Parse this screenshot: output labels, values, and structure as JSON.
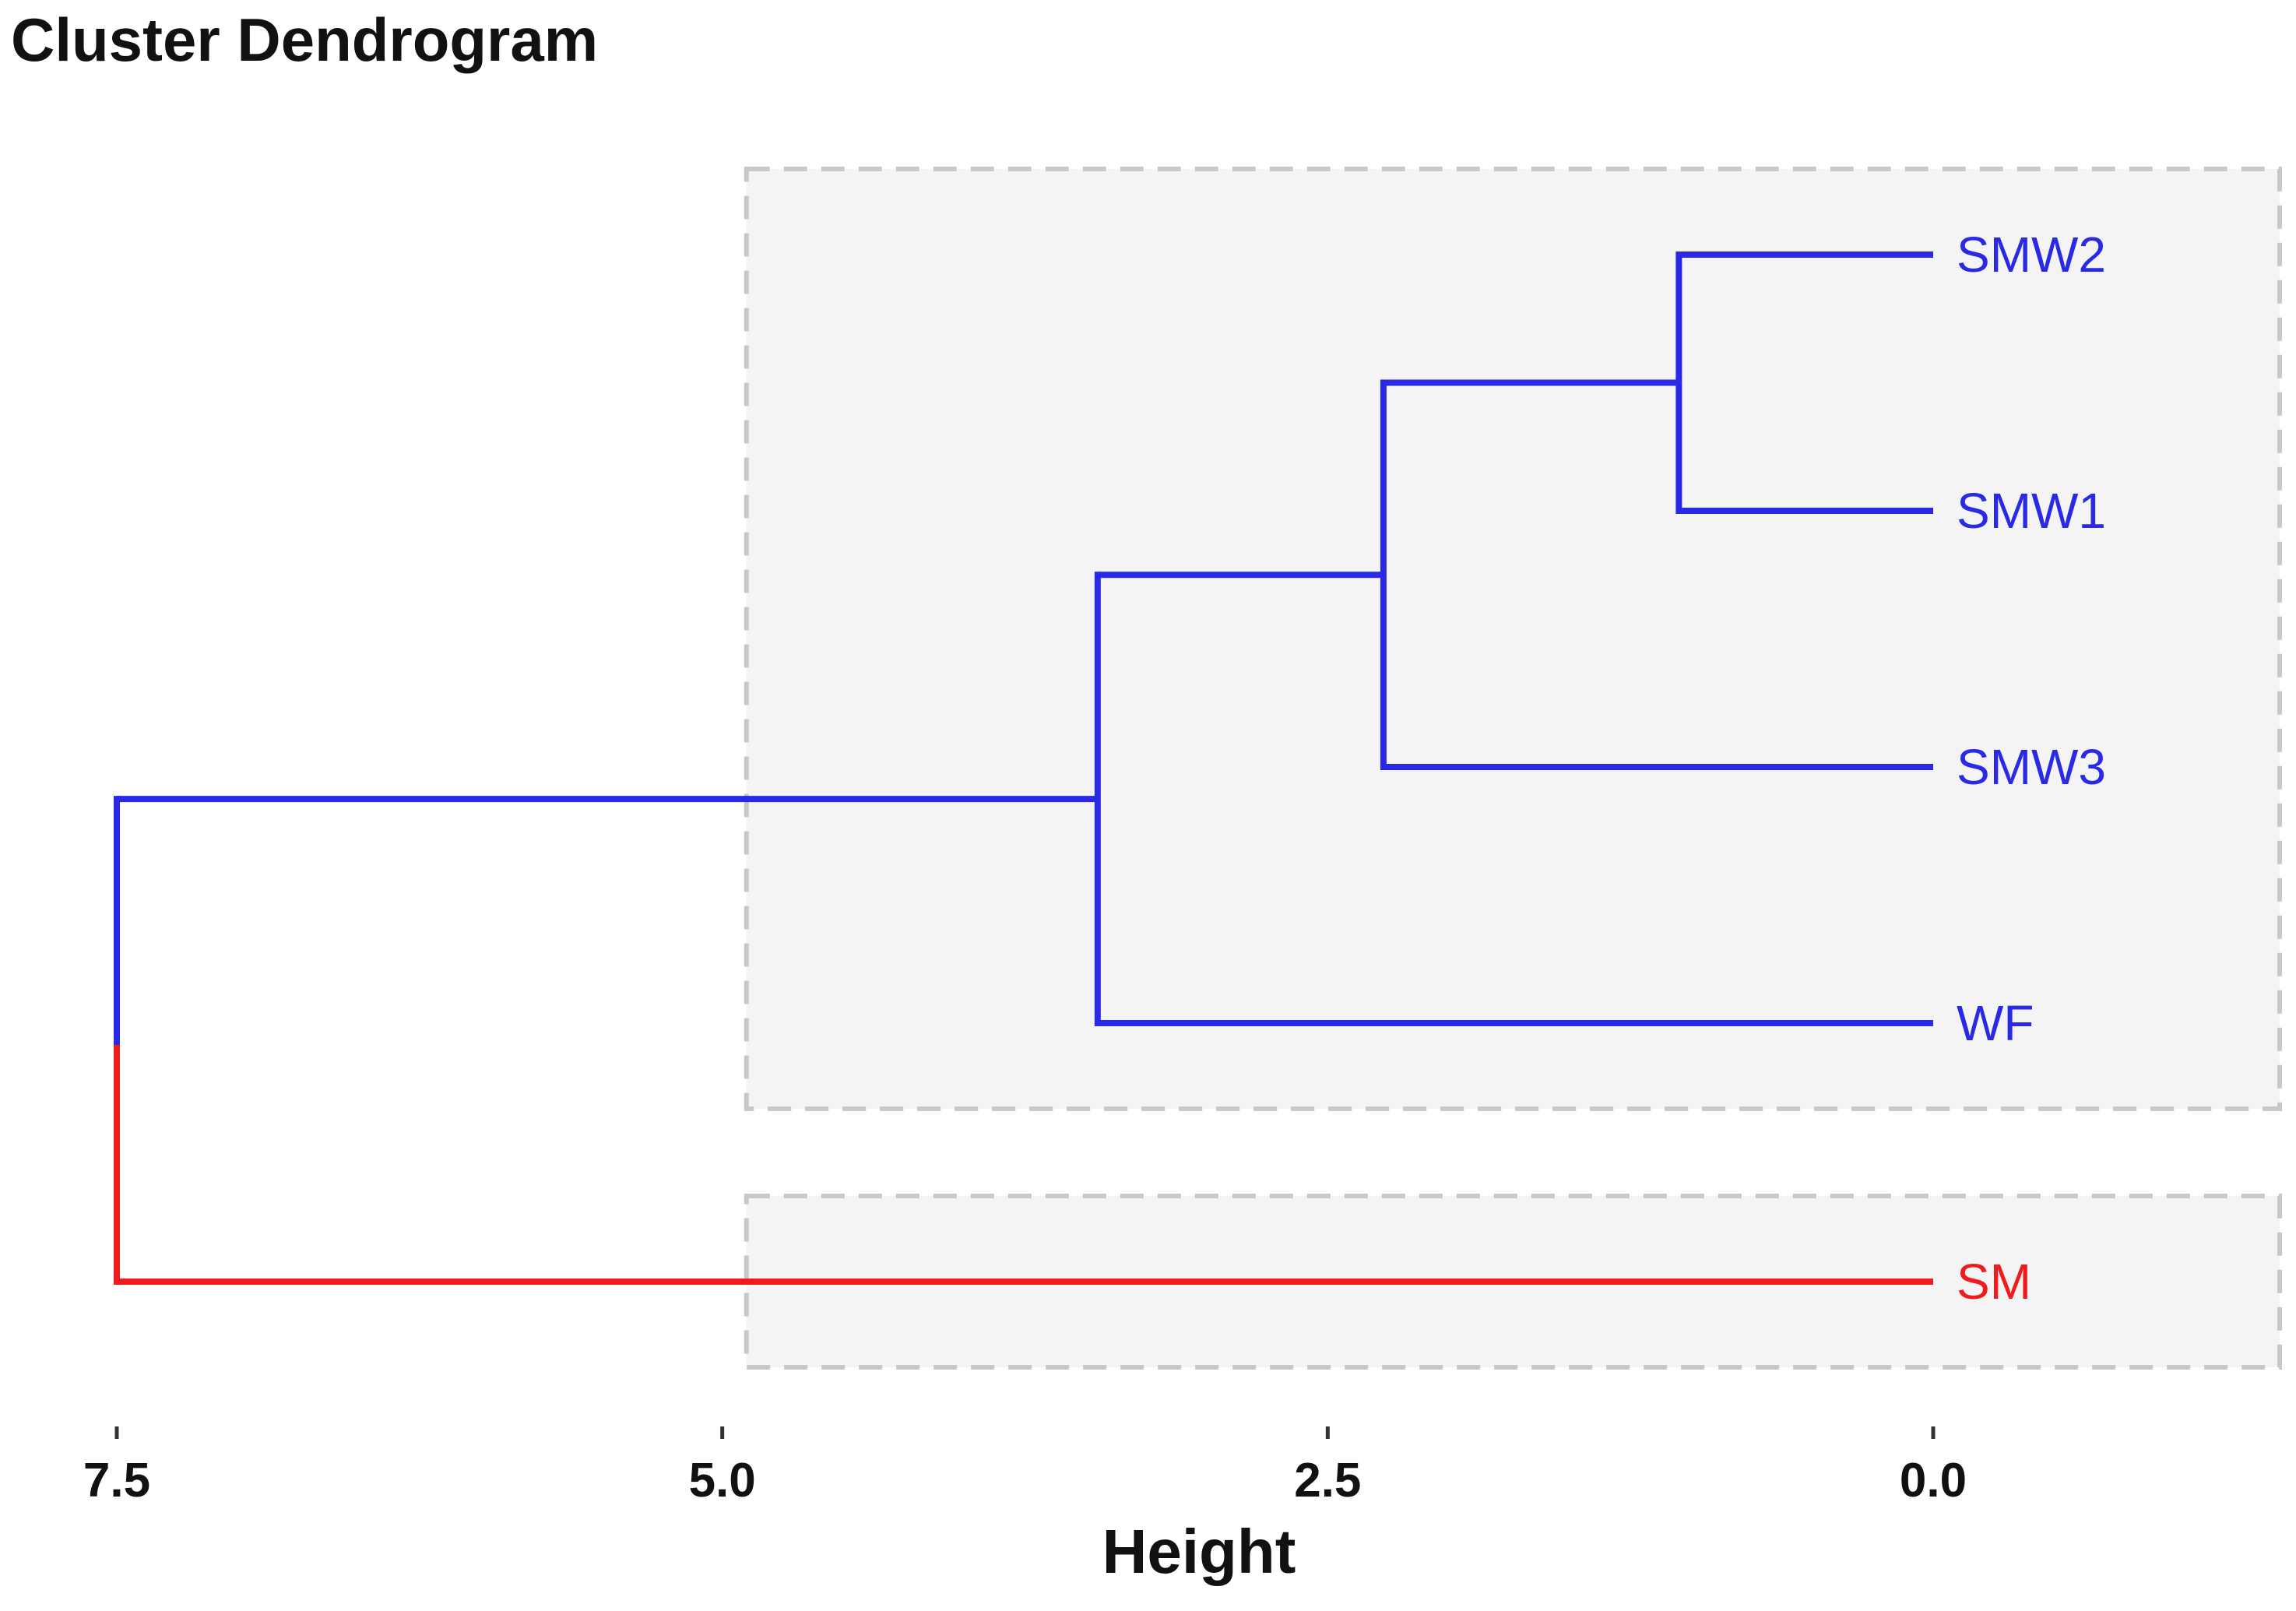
{
  "chart_data": {
    "type": "dendrogram",
    "title": "Cluster Dendrogram",
    "xlabel": "Height",
    "xlim": [
      7.5,
      0.0
    ],
    "x_ticks": [
      7.5,
      5.0,
      2.5,
      0.0
    ],
    "x_tick_labels": [
      "7.5",
      "5.0",
      "2.5",
      "0.0"
    ],
    "leaves": [
      {
        "label": "SMW2",
        "cluster": 1
      },
      {
        "label": "SMW1",
        "cluster": 1
      },
      {
        "label": "SMW3",
        "cluster": 1
      },
      {
        "label": "WF",
        "cluster": 1
      },
      {
        "label": "SM",
        "cluster": 2
      }
    ],
    "merges": [
      {
        "a": "SMW2",
        "b": "SMW1",
        "height": 1.05
      },
      {
        "a": "SMW2+SMW1",
        "b": "SMW3",
        "height": 2.27
      },
      {
        "a": "SMW2+SMW1+SMW3",
        "b": "WF",
        "height": 3.45
      },
      {
        "a": "SMW2+SMW1+SMW3+WF",
        "b": "SM",
        "height": 7.5
      }
    ],
    "clusters": [
      {
        "id": 1,
        "color": "#2929e6",
        "members": [
          "SMW2",
          "SMW1",
          "SMW3",
          "WF"
        ]
      },
      {
        "id": 2,
        "color": "#ee1c1c",
        "members": [
          "SM"
        ]
      }
    ],
    "rect_fill": "#f4f4f4",
    "rect_border": "#c8c8c8"
  }
}
